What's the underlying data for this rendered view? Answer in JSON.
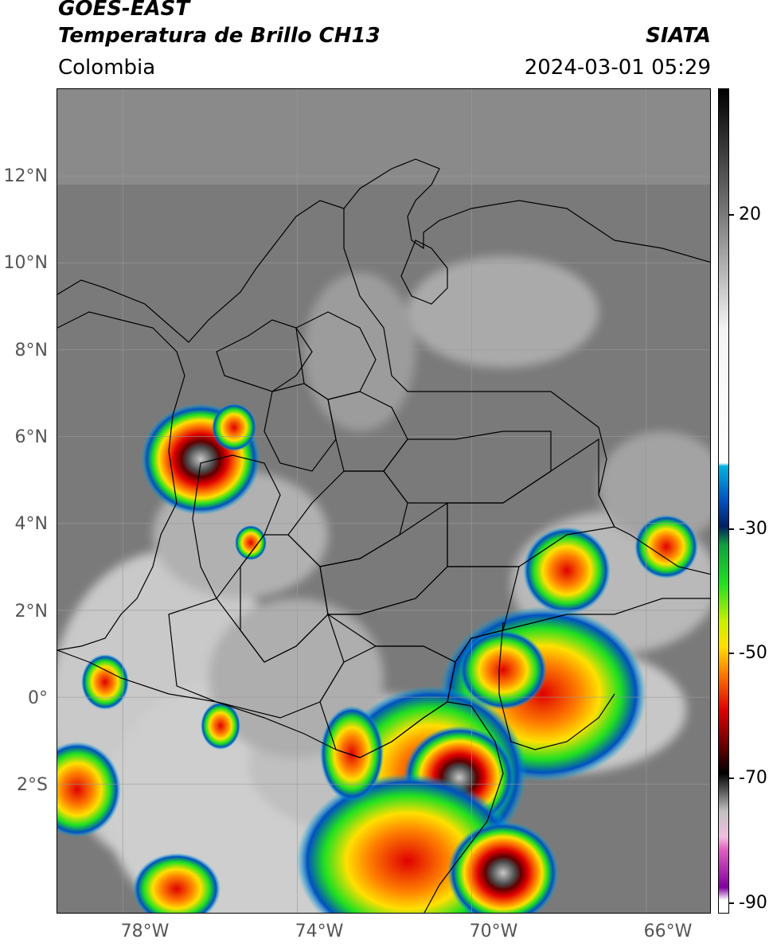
{
  "header": {
    "satellite": "GOES-EAST",
    "product": "Temperatura de Brillo CH13",
    "region": "Colombia",
    "brand": "SIATA",
    "timestamp": "2024-03-01 05:29"
  },
  "axes": {
    "lat_labels": [
      "12°N",
      "10°N",
      "8°N",
      "6°N",
      "4°N",
      "2°N",
      "0°",
      "2°S"
    ],
    "lon_labels": [
      "78°W",
      "74°W",
      "70°W",
      "66°W"
    ],
    "lat_range": [
      -5.0,
      14.0
    ],
    "lon_range": [
      -79.5,
      -64.5
    ],
    "grid": true
  },
  "colorbar": {
    "labels": [
      "20",
      "-30",
      "-50",
      "-70",
      "-90"
    ],
    "range_celsius": [
      -92,
      38
    ],
    "stops": [
      {
        "t": 38,
        "color": "#000000"
      },
      {
        "t": 20,
        "color": "#6e6e6e"
      },
      {
        "t": 0,
        "color": "#f4f4f4"
      },
      {
        "t": -21,
        "color": "#ffffff"
      },
      {
        "t": -21.5,
        "color": "#00b4e0"
      },
      {
        "t": -27,
        "color": "#0050c0"
      },
      {
        "t": -31,
        "color": "#002060"
      },
      {
        "t": -34,
        "color": "#10a040"
      },
      {
        "t": -40,
        "color": "#20e020"
      },
      {
        "t": -46,
        "color": "#c8f000"
      },
      {
        "t": -50,
        "color": "#ffe000"
      },
      {
        "t": -54,
        "color": "#ff8000"
      },
      {
        "t": -60,
        "color": "#e00000"
      },
      {
        "t": -66,
        "color": "#600000"
      },
      {
        "t": -70,
        "color": "#000000"
      },
      {
        "t": -76,
        "color": "#c0c0c0"
      },
      {
        "t": -80,
        "color": "#f0c0e0"
      },
      {
        "t": -82,
        "color": "#e060c0"
      },
      {
        "t": -88,
        "color": "#8000a0"
      },
      {
        "t": -90,
        "color": "#ffffff"
      },
      {
        "t": -92,
        "color": "#ffffff"
      }
    ]
  },
  "colors": {
    "background_gray": "#7a7a7a",
    "cold_cloud_gray": "#d8d8d8",
    "border_line": "#000000"
  }
}
